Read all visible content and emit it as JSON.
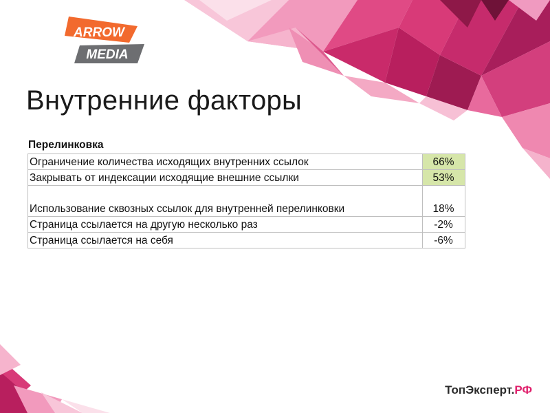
{
  "logo": {
    "line1": "ARROW",
    "line2": "MEDIA"
  },
  "title": "Внутренние факторы",
  "table": {
    "caption": "Перелинковка",
    "rows": [
      {
        "factor": "Ограничение количества исходящих внутренних ссылок",
        "value": "66%"
      },
      {
        "factor": "Закрывать от индексации исходящие внешние ссылки",
        "value": "53%"
      },
      {
        "factor": "Использование сквозных ссылок для внутренней перелинковки",
        "value": "18%"
      },
      {
        "factor": "Страница ссылается на другую несколько раз",
        "value": "-2%"
      },
      {
        "factor": "Страница ссылается на себя",
        "value": "-6%"
      }
    ]
  },
  "footer": {
    "brand_main": "ТопЭксперт.",
    "brand_accent": "РФ"
  },
  "colors": {
    "positive_cell": "#d6e6a9",
    "brand_accent": "#e0206c",
    "logo_orange": "#f26a2e",
    "logo_gray": "#6d6e71"
  }
}
